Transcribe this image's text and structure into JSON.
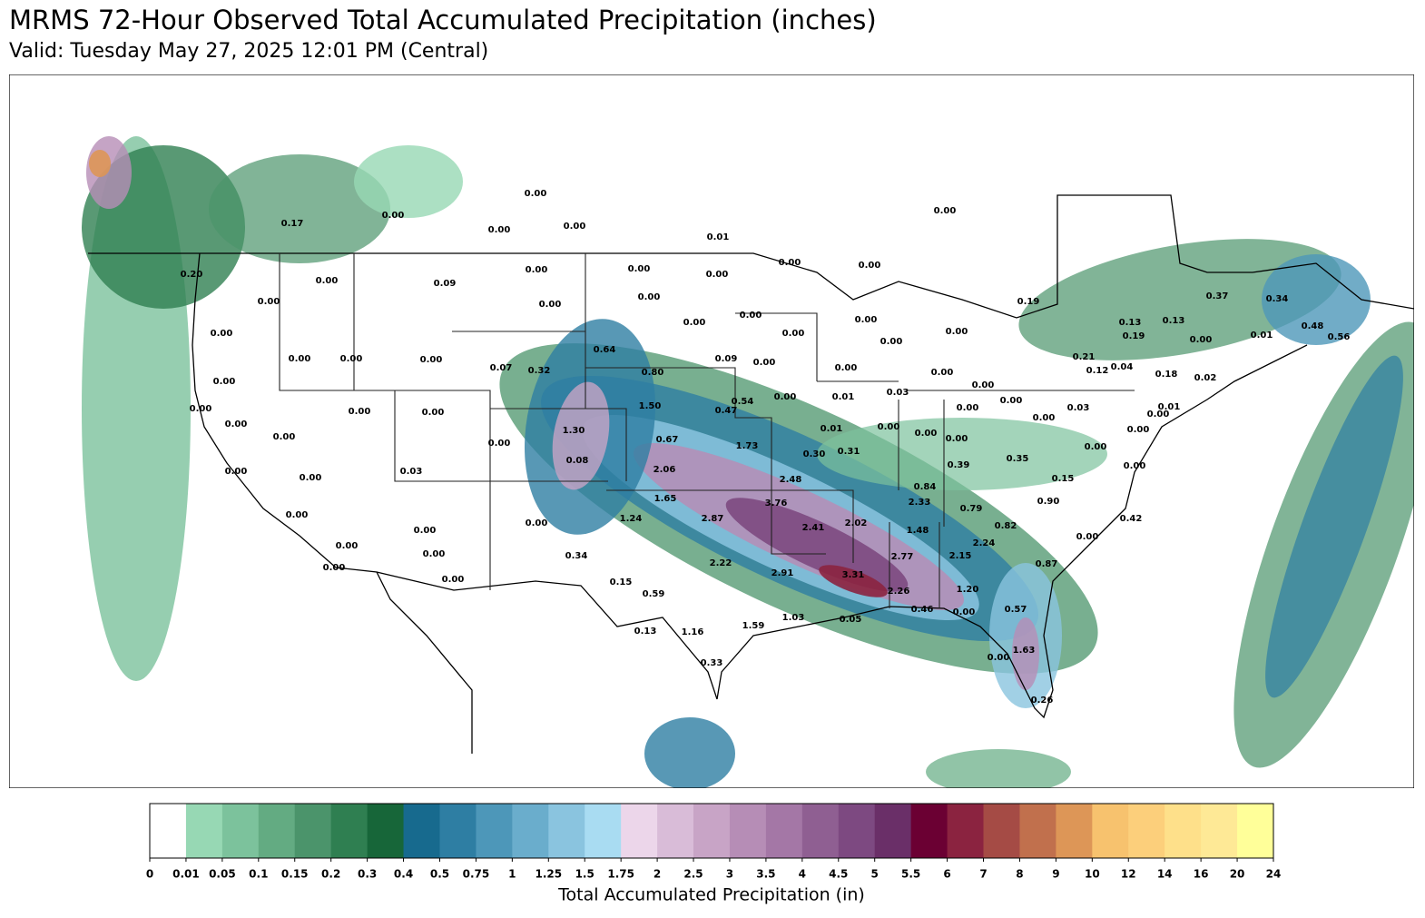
{
  "header": {
    "title": "MRMS 72-Hour Observed Total Accumulated Precipitation (inches)",
    "subtitle": "Valid: Tuesday May 27, 2025 12:01 PM (Central)"
  },
  "map": {
    "station_labels": [
      "0.00",
      "0.00",
      "0.17",
      "0.00",
      "0.00",
      "0.00",
      "0.01",
      "0.00",
      "0.00",
      "0.00",
      "0.00",
      "0.00",
      "0.20",
      "0.00",
      "0.09",
      "0.00",
      "0.00",
      "0.00",
      "0.19",
      "0.37",
      "0.34",
      "0.00",
      "0.00",
      "0.00",
      "0.00",
      "0.00",
      "0.13",
      "0.13",
      "0.19",
      "0.00",
      "0.01",
      "0.48",
      "0.00",
      "0.00",
      "0.64",
      "0.00",
      "0.00",
      "0.00",
      "0.09",
      "0.00",
      "0.07",
      "0.32",
      "0.00",
      "0.21",
      "0.12",
      "0.04",
      "0.18",
      "0.02",
      "0.80",
      "0.00",
      "0.00",
      "0.03",
      "0.01",
      "0.00",
      "0.00",
      "0.00",
      "0.54",
      "1.50",
      "0.47",
      "0.00",
      "0.03",
      "0.00",
      "0.00",
      "0.00",
      "0.01",
      "0.00",
      "0.00",
      "0.00",
      "1.30",
      "0.01",
      "0.00",
      "0.00",
      "0.00",
      "0.00",
      "0.67",
      "0.00",
      "0.00",
      "1.73",
      "0.30",
      "0.31",
      "0.08",
      "0.39",
      "0.35",
      "0.00",
      "0.00",
      "0.00",
      "0.03",
      "2.06",
      "0.00",
      "2.48",
      "0.15",
      "0.84",
      "1.65",
      "3.76",
      "2.33",
      "0.79",
      "0.90",
      "0.00",
      "1.24",
      "2.87",
      "2.41",
      "2.02",
      "0.42",
      "0.00",
      "0.00",
      "1.48",
      "0.82",
      "0.00",
      "0.00",
      "2.24",
      "0.00",
      "0.34",
      "2.77",
      "2.15",
      "0.00",
      "2.22",
      "0.87",
      "2.91",
      "3.31",
      "0.00",
      "0.15",
      "2.26",
      "1.20",
      "0.59",
      "0.46",
      "0.00",
      "0.57",
      "1.03",
      "0.05",
      "0.13",
      "1.16",
      "1.59",
      "0.00",
      "1.63",
      "0.33",
      "0.26",
      "0.56"
    ]
  },
  "colorbar": {
    "ticks": [
      0,
      0.01,
      0.05,
      0.1,
      0.15,
      0.2,
      0.3,
      0.4,
      0.5,
      0.75,
      1,
      1.25,
      1.5,
      1.75,
      2,
      2.5,
      3,
      3.5,
      4,
      4.5,
      5,
      5.5,
      6,
      7,
      8,
      9,
      10,
      12,
      14,
      16,
      20,
      24
    ],
    "colors": [
      "#ffffff",
      "#97d8b4",
      "#7cc29c",
      "#63ab82",
      "#4b946b",
      "#2f7f51",
      "#176639",
      "#176a8e",
      "#2e7ea3",
      "#4d97b9",
      "#6aadcc",
      "#8ac4df",
      "#a9dcf2",
      "#ecd6ea",
      "#d9bcd8",
      "#c8a4c6",
      "#b68db6",
      "#a477a6",
      "#8f5f92",
      "#7d4981",
      "#6a2f68",
      "#6b0033",
      "#8b2340",
      "#a54b45",
      "#c1704d",
      "#dd9657",
      "#f7c26e",
      "#fccf7b",
      "#fee08a",
      "#fee996",
      "#ffff99"
    ],
    "label": "Total Accumulated Precipitation (in)"
  }
}
